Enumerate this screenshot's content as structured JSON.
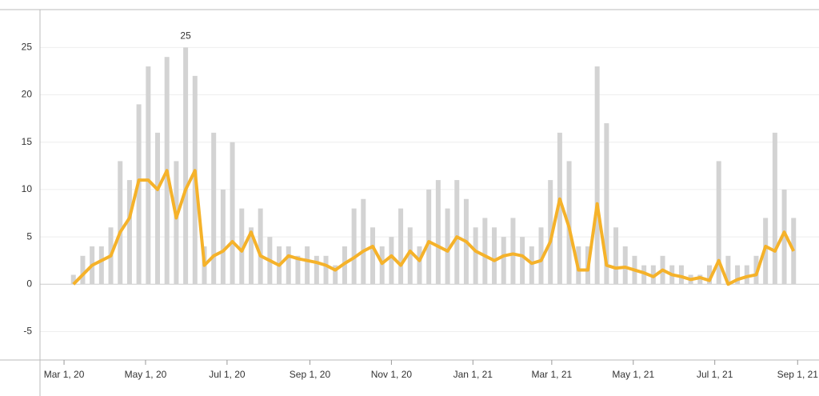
{
  "chart_data": {
    "type": "bar_line",
    "x": [
      "2020-03-08",
      "2020-03-15",
      "2020-03-22",
      "2020-03-29",
      "2020-04-05",
      "2020-04-12",
      "2020-04-19",
      "2020-04-26",
      "2020-05-03",
      "2020-05-10",
      "2020-05-17",
      "2020-05-24",
      "2020-05-31",
      "2020-06-07",
      "2020-06-14",
      "2020-06-21",
      "2020-06-28",
      "2020-07-05",
      "2020-07-12",
      "2020-07-19",
      "2020-07-26",
      "2020-08-02",
      "2020-08-09",
      "2020-08-16",
      "2020-08-23",
      "2020-08-30",
      "2020-09-06",
      "2020-09-13",
      "2020-09-20",
      "2020-09-27",
      "2020-10-04",
      "2020-10-11",
      "2020-10-18",
      "2020-10-25",
      "2020-11-01",
      "2020-11-08",
      "2020-11-15",
      "2020-11-22",
      "2020-11-29",
      "2020-12-06",
      "2020-12-13",
      "2020-12-20",
      "2020-12-27",
      "2021-01-03",
      "2021-01-10",
      "2021-01-17",
      "2021-01-24",
      "2021-01-31",
      "2021-02-07",
      "2021-02-14",
      "2021-02-21",
      "2021-02-28",
      "2021-03-07",
      "2021-03-14",
      "2021-03-21",
      "2021-03-28",
      "2021-04-04",
      "2021-04-11",
      "2021-04-18",
      "2021-04-25",
      "2021-05-02",
      "2021-05-09",
      "2021-05-16",
      "2021-05-23",
      "2021-05-30",
      "2021-06-06",
      "2021-06-13",
      "2021-06-20",
      "2021-06-27",
      "2021-07-04",
      "2021-07-11",
      "2021-07-18",
      "2021-07-25",
      "2021-08-01",
      "2021-08-08",
      "2021-08-15",
      "2021-08-22",
      "2021-08-29"
    ],
    "series": [
      {
        "kind": "bar",
        "color": "#d3d3d3",
        "values": [
          1,
          3,
          4,
          4,
          6,
          13,
          11,
          19,
          23,
          16,
          24,
          13,
          25,
          22,
          4,
          16,
          10,
          15,
          8,
          6,
          8,
          5,
          4,
          4,
          3,
          4,
          3,
          3,
          2,
          4,
          8,
          9,
          6,
          4,
          5,
          8,
          6,
          4,
          10,
          11,
          8,
          11,
          9,
          6,
          7,
          6,
          5,
          7,
          5,
          4,
          6,
          11,
          16,
          13,
          4,
          4,
          23,
          17,
          6,
          4,
          3,
          2,
          2,
          3,
          2,
          2,
          1,
          1,
          2,
          13,
          3,
          2,
          2,
          3,
          7,
          16,
          10,
          7
        ]
      },
      {
        "kind": "line",
        "color": "#f5b22a",
        "values": [
          0,
          1,
          2,
          2.5,
          3,
          5.5,
          7,
          11,
          11,
          10,
          12,
          7,
          10,
          12,
          2,
          3,
          3.5,
          4.5,
          3.5,
          5.5,
          3,
          2.5,
          2,
          3,
          2.7,
          2.5,
          2.3,
          2,
          1.5,
          2.2,
          2.8,
          3.5,
          4,
          2.2,
          3,
          2,
          3.5,
          2.5,
          4.5,
          4,
          3.5,
          5,
          4.5,
          3.5,
          3,
          2.5,
          3,
          3.2,
          3,
          2.2,
          2.5,
          4.5,
          9,
          6,
          1.5,
          1.5,
          8.5,
          2,
          1.7,
          1.8,
          1.5,
          1.2,
          0.8,
          1.5,
          1,
          0.8,
          0.5,
          0.7,
          0.4,
          2.5,
          0,
          0.5,
          0.8,
          1,
          4,
          3.5,
          5.5,
          3.5
        ]
      }
    ],
    "peak_label_index": 12,
    "xlim": [
      "2020-02-12",
      "2021-09-17"
    ],
    "xticks": [
      {
        "value": "2020-03-01",
        "label": "Mar 1, 20"
      },
      {
        "value": "2020-05-01",
        "label": "May 1, 20"
      },
      {
        "value": "2020-07-01",
        "label": "Jul 1, 20"
      },
      {
        "value": "2020-09-01",
        "label": "Sep 1, 20"
      },
      {
        "value": "2020-11-01",
        "label": "Nov 1, 20"
      },
      {
        "value": "2021-01-01",
        "label": "Jan 1, 21"
      },
      {
        "value": "2021-03-01",
        "label": "Mar 1, 21"
      },
      {
        "value": "2021-05-01",
        "label": "May 1, 21"
      },
      {
        "value": "2021-07-01",
        "label": "Jul 1, 21"
      },
      {
        "value": "2021-09-01",
        "label": "Sep 1, 21"
      }
    ],
    "ylim": [
      -8,
      29
    ],
    "yticks": [
      -5,
      0,
      5,
      10,
      15,
      20,
      25
    ],
    "grid": true
  }
}
